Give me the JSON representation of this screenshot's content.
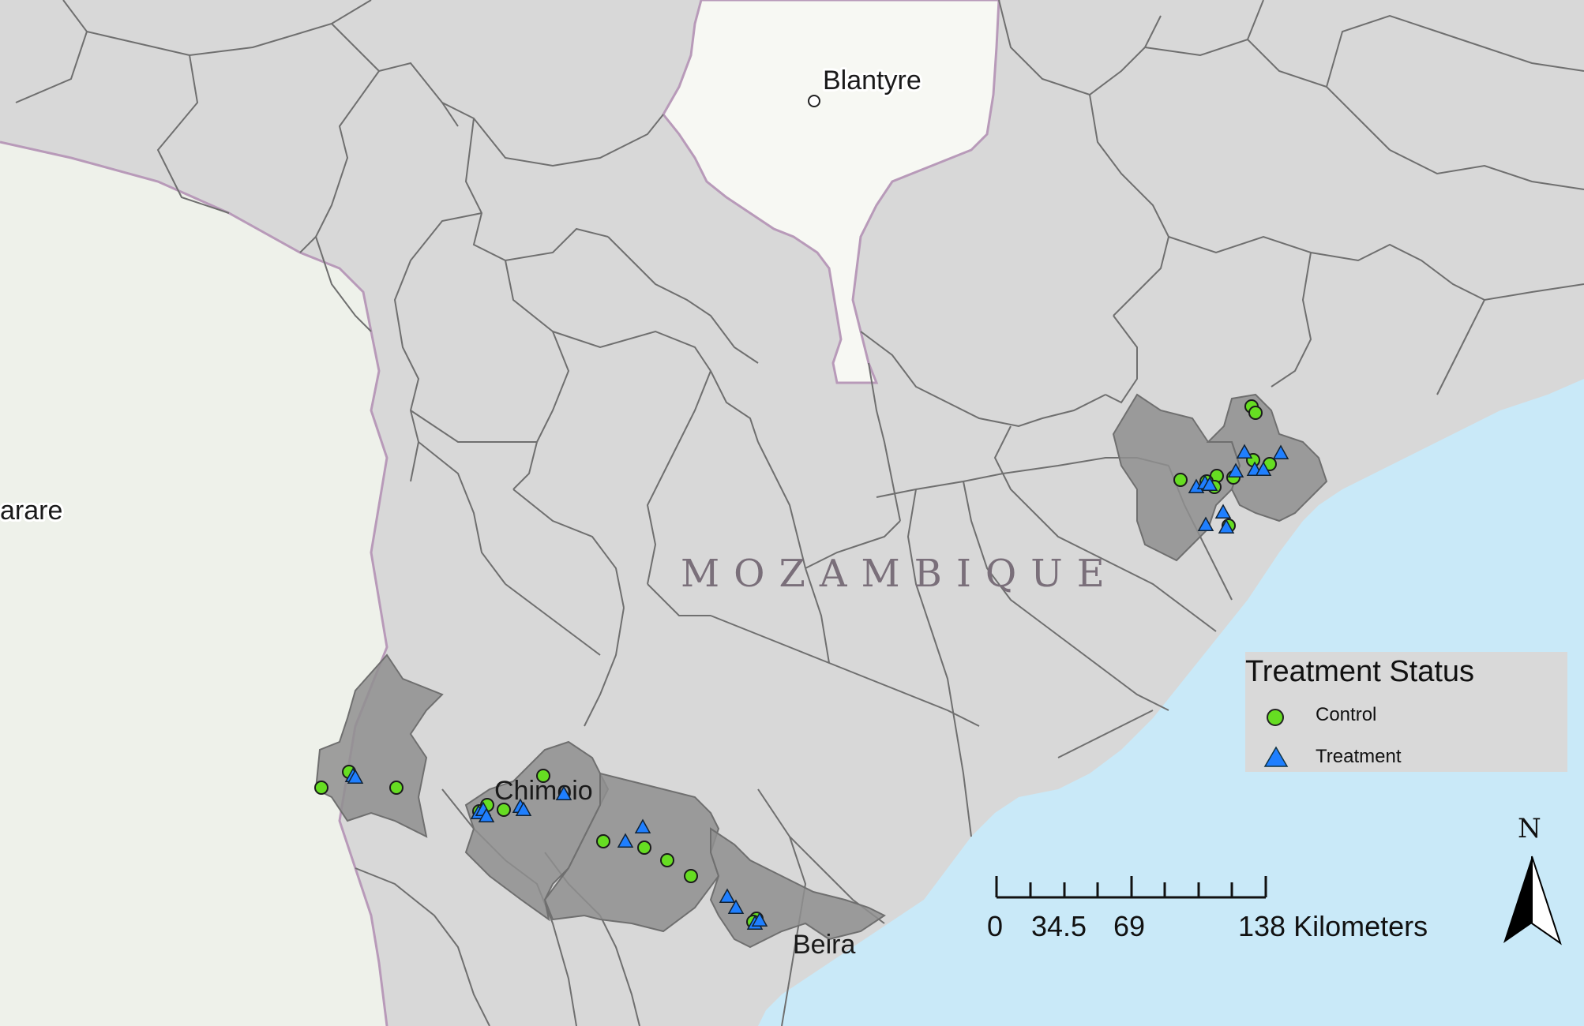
{
  "map": {
    "country_label": "MOZAMBIQUE",
    "cities": [
      {
        "name": "Blantyre",
        "has_marker": true
      },
      {
        "name": "arare",
        "has_marker": false
      },
      {
        "name": "Chimoio",
        "has_marker": false
      },
      {
        "name": "Beira",
        "has_marker": false
      }
    ],
    "colors": {
      "land": "#d8d8d8",
      "foreign_land": "#eef1ea",
      "malawi_land": "#f7f8f3",
      "water": "#c9e9f8",
      "study_district": "#8f8f8f",
      "district_border": "#6f6f6f",
      "country_border": "#b89ab9",
      "control": "#66dd22",
      "treatment": "#1f7fff"
    }
  },
  "legend": {
    "title": "Treatment Status",
    "items": [
      {
        "label": "Control",
        "symbol": "circle-icon"
      },
      {
        "label": "Treatment",
        "symbol": "triangle-icon"
      }
    ]
  },
  "scale_bar": {
    "labels": [
      "0",
      "34.5",
      "69",
      "138 Kilometers"
    ]
  },
  "north_arrow": {
    "label": "N"
  }
}
